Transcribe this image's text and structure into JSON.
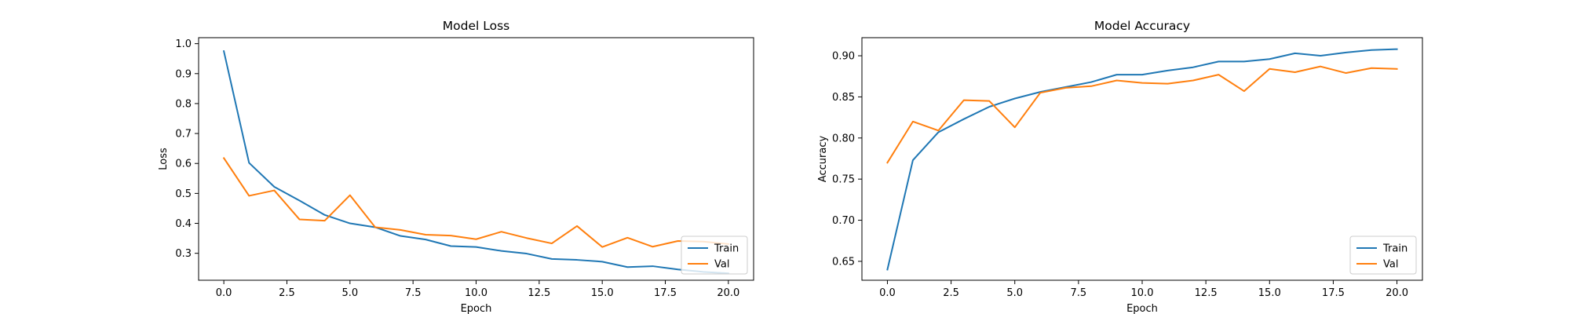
{
  "chart_data": [
    {
      "type": "line",
      "title": "Model Loss",
      "xlabel": "Epoch",
      "ylabel": "Loss",
      "xlim": [
        -1.0,
        21.0
      ],
      "ylim": [
        0.21,
        1.02
      ],
      "xticks": [
        0.0,
        2.5,
        5.0,
        7.5,
        10.0,
        12.5,
        15.0,
        17.5,
        20.0
      ],
      "xtick_labels": [
        "0.0",
        "2.5",
        "5.0",
        "7.5",
        "10.0",
        "12.5",
        "15.0",
        "17.5",
        "20.0"
      ],
      "yticks": [
        0.3,
        0.4,
        0.5,
        0.6,
        0.7,
        0.8,
        0.9,
        1.0
      ],
      "ytick_labels": [
        "0.3",
        "0.4",
        "0.5",
        "0.6",
        "0.7",
        "0.8",
        "0.9",
        "1.0"
      ],
      "grid": false,
      "legend_position": "lower-right",
      "x": [
        0,
        1,
        2,
        3,
        4,
        5,
        6,
        7,
        8,
        9,
        10,
        11,
        12,
        13,
        14,
        15,
        16,
        17,
        18,
        19,
        20
      ],
      "series": [
        {
          "name": "Train",
          "color": "#1f77b4",
          "values": [
            0.975,
            0.602,
            0.522,
            0.476,
            0.428,
            0.4,
            0.387,
            0.358,
            0.346,
            0.324,
            0.321,
            0.308,
            0.299,
            0.281,
            0.278,
            0.272,
            0.254,
            0.257,
            0.246,
            0.238,
            0.233
          ]
        },
        {
          "name": "Val",
          "color": "#ff7f0e",
          "values": [
            0.618,
            0.492,
            0.51,
            0.413,
            0.409,
            0.494,
            0.387,
            0.378,
            0.362,
            0.359,
            0.347,
            0.372,
            0.351,
            0.333,
            0.391,
            0.321,
            0.352,
            0.322,
            0.341,
            0.339,
            0.331
          ]
        }
      ]
    },
    {
      "type": "line",
      "title": "Model Accuracy",
      "xlabel": "Epoch",
      "ylabel": "Accuracy",
      "xlim": [
        -1.0,
        21.0
      ],
      "ylim": [
        0.627,
        0.922
      ],
      "xticks": [
        0.0,
        2.5,
        5.0,
        7.5,
        10.0,
        12.5,
        15.0,
        17.5,
        20.0
      ],
      "xtick_labels": [
        "0.0",
        "2.5",
        "5.0",
        "7.5",
        "10.0",
        "12.5",
        "15.0",
        "17.5",
        "20.0"
      ],
      "yticks": [
        0.65,
        0.7,
        0.75,
        0.8,
        0.85,
        0.9
      ],
      "ytick_labels": [
        "0.65",
        "0.70",
        "0.75",
        "0.80",
        "0.85",
        "0.90"
      ],
      "grid": false,
      "legend_position": "lower-right",
      "x": [
        0,
        1,
        2,
        3,
        4,
        5,
        6,
        7,
        8,
        9,
        10,
        11,
        12,
        13,
        14,
        15,
        16,
        17,
        18,
        19,
        20
      ],
      "series": [
        {
          "name": "Train",
          "color": "#1f77b4",
          "values": [
            0.64,
            0.773,
            0.807,
            0.823,
            0.838,
            0.848,
            0.856,
            0.862,
            0.868,
            0.877,
            0.877,
            0.882,
            0.886,
            0.893,
            0.893,
            0.896,
            0.903,
            0.9,
            0.904,
            0.907,
            0.908
          ]
        },
        {
          "name": "Val",
          "color": "#ff7f0e",
          "values": [
            0.77,
            0.82,
            0.809,
            0.846,
            0.845,
            0.813,
            0.855,
            0.861,
            0.863,
            0.87,
            0.867,
            0.866,
            0.87,
            0.877,
            0.857,
            0.884,
            0.88,
            0.887,
            0.879,
            0.885,
            0.884
          ]
        }
      ]
    }
  ]
}
